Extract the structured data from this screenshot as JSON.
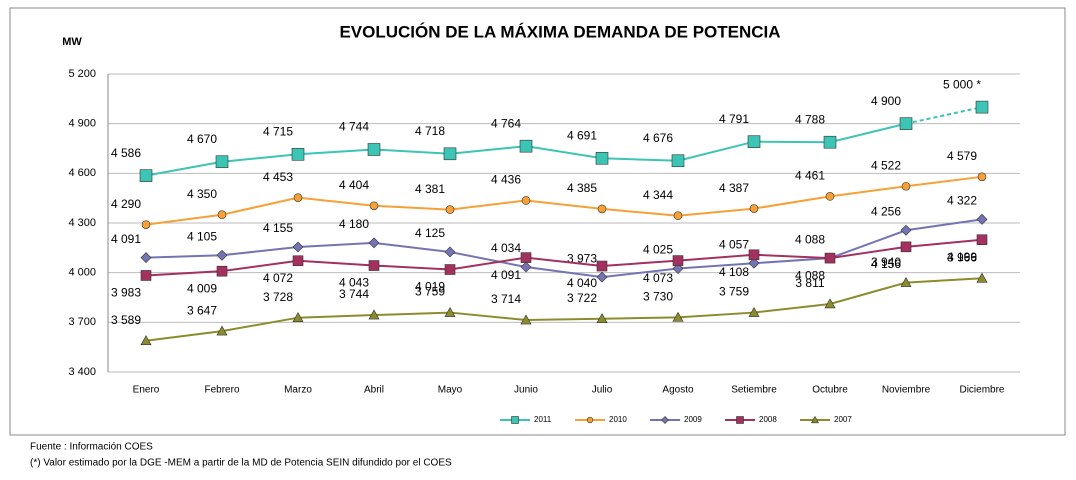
{
  "chart_data": {
    "type": "line",
    "title": "EVOLUCIÓN DE LA MÁXIMA DEMANDA  DE POTENCIA",
    "y_label": "MW",
    "categories": [
      "Enero",
      "Febrero",
      "Marzo",
      "Abril",
      "Mayo",
      "Junio",
      "Julio",
      "Agosto",
      "Setiembre",
      "Octubre",
      "Noviembre",
      "Diciembre"
    ],
    "ylim": [
      3400,
      5200
    ],
    "yticks": [
      {
        "value": 3400,
        "label": "3 400"
      },
      {
        "value": 3700,
        "label": "3 700"
      },
      {
        "value": 4000,
        "label": "4 000"
      },
      {
        "value": 4300,
        "label": "4 300"
      },
      {
        "value": 4600,
        "label": "4 600"
      },
      {
        "value": 4900,
        "label": "4 900"
      },
      {
        "value": 5200,
        "label": "5 200"
      }
    ],
    "grid": true,
    "legend": "bottom",
    "series": [
      {
        "name": "2011",
        "color": "#3cc4b4",
        "marker": "square",
        "dashed_last_segment": true,
        "values": [
          4586,
          4670,
          4715,
          4744,
          4718,
          4764,
          4691,
          4676,
          4791,
          4788,
          4900,
          5000
        ],
        "value_labels": [
          "4 586",
          "4 670",
          "4 715",
          "4 744",
          "4 718",
          "4 764",
          "4 691",
          "4 676",
          "4 791",
          "4 788",
          "4 900",
          "5 000 *"
        ]
      },
      {
        "name": "2010",
        "color": "#f7a035",
        "marker": "circle",
        "values": [
          4290,
          4350,
          4453,
          4404,
          4381,
          4436,
          4385,
          4344,
          4387,
          4461,
          4522,
          4579
        ],
        "value_labels": [
          "4 290",
          "4 350",
          "4 453",
          "4 404",
          "4 381",
          "4 436",
          "4 385",
          "4 344",
          "4 387",
          "4 461",
          "4 522",
          "4 579"
        ]
      },
      {
        "name": "2009",
        "color": "#7474b4",
        "marker": "diamond",
        "values": [
          4091,
          4105,
          4155,
          4180,
          4125,
          4034,
          3973,
          4025,
          4057,
          4088,
          4256,
          4322
        ],
        "value_labels": [
          "4 091",
          "4 105",
          "4 155",
          "4 180",
          "4 125",
          "4 034",
          "3 973",
          "4 025",
          "4 057",
          "4 088",
          "4 256",
          "4 322"
        ]
      },
      {
        "name": "2008",
        "color": "#a3305f",
        "marker": "square",
        "values": [
          3983,
          4009,
          4072,
          4043,
          4019,
          4091,
          4040,
          4073,
          4108,
          4088,
          4156,
          4199
        ],
        "value_labels": [
          "3 983",
          "4 009",
          "4 072",
          "4 043",
          "4 019",
          "4 091",
          "4 040",
          "4 073",
          "4 108",
          "4 088",
          "4 156",
          "4 199"
        ]
      },
      {
        "name": "2007",
        "color": "#8c8c2e",
        "marker": "triangle",
        "values": [
          3589,
          3647,
          3728,
          3744,
          3759,
          3714,
          3722,
          3730,
          3759,
          3811,
          3940,
          3966
        ],
        "value_labels": [
          "3 589",
          "3 647",
          "3 728",
          "3 744",
          "3 759",
          "3 714",
          "3 722",
          "3 730",
          "3 759",
          "3 811",
          "3 940",
          "3 966"
        ]
      }
    ],
    "notes": [
      "Fuente : Información COES",
      "(*) Valor  estimado por la DGE -MEM a partir de la MD de Potencia SEIN difundido por el COES"
    ]
  }
}
